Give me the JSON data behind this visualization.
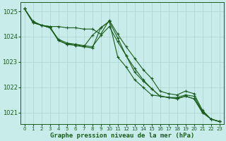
{
  "background_color": "#c8ecea",
  "grid_color": "#b0d8d0",
  "line_color": "#1a5c1a",
  "title": "Graphe pression niveau de la mer (hPa)",
  "xlim": [
    -0.5,
    23.5
  ],
  "ylim": [
    1020.55,
    1025.35
  ],
  "yticks": [
    1021,
    1022,
    1023,
    1024,
    1025
  ],
  "xtick_labels": [
    "0",
    "1",
    "2",
    "3",
    "4",
    "5",
    "6",
    "7",
    "8",
    "9",
    "10",
    "11",
    "12",
    "13",
    "14",
    "15",
    "16",
    "17",
    "18",
    "19",
    "20",
    "21",
    "22",
    "23"
  ],
  "xticks": [
    0,
    1,
    2,
    3,
    4,
    5,
    6,
    7,
    8,
    9,
    10,
    11,
    12,
    13,
    14,
    15,
    16,
    17,
    18,
    19,
    20,
    21,
    22,
    23
  ],
  "lines": [
    {
      "x": [
        0,
        1,
        2,
        3,
        4,
        5,
        6,
        7,
        8,
        9,
        10,
        11,
        12,
        13,
        14,
        15,
        16,
        17,
        18,
        19,
        20,
        21,
        22,
        23
      ],
      "y": [
        1025.1,
        1024.6,
        1024.45,
        1024.4,
        1024.4,
        1024.35,
        1024.35,
        1024.3,
        1024.3,
        1024.1,
        1024.65,
        1024.1,
        1023.6,
        1023.15,
        1022.7,
        1022.35,
        1021.85,
        1021.75,
        1021.7,
        1021.85,
        1021.75,
        1021.1,
        1020.75,
        1020.65
      ]
    },
    {
      "x": [
        0,
        1,
        2,
        3,
        4,
        5,
        6,
        7,
        8,
        9,
        10,
        11,
        12,
        13,
        14,
        15,
        16,
        17,
        18,
        19,
        20,
        21,
        22,
        23
      ],
      "y": [
        1025.1,
        1024.55,
        1024.45,
        1024.35,
        1023.9,
        1023.75,
        1023.7,
        1023.65,
        1023.6,
        1024.05,
        1024.4,
        1023.8,
        1023.25,
        1022.75,
        1022.3,
        1021.95,
        1021.65,
        1021.6,
        1021.6,
        1021.7,
        1021.65,
        1021.05,
        1020.75,
        1020.65
      ]
    },
    {
      "x": [
        0,
        1,
        2,
        3,
        4,
        5,
        6,
        7,
        8,
        9,
        10,
        11,
        12,
        13,
        14,
        15,
        16,
        17,
        18,
        19,
        20,
        21,
        22,
        23
      ],
      "y": [
        1025.1,
        1024.55,
        1024.45,
        1024.35,
        1023.85,
        1023.7,
        1023.65,
        1023.6,
        1023.55,
        1024.35,
        1024.6,
        1023.95,
        1023.25,
        1022.6,
        1022.25,
        1021.95,
        1021.65,
        1021.6,
        1021.55,
        1021.65,
        1021.55,
        1021.0,
        1020.75,
        1020.65
      ]
    },
    {
      "x": [
        0,
        1,
        2,
        3,
        4,
        5,
        6,
        7,
        8,
        9,
        10,
        11,
        12,
        13,
        14,
        15,
        16,
        17,
        18,
        19,
        20,
        21,
        22,
        23
      ],
      "y": [
        1025.1,
        1024.6,
        1024.45,
        1024.4,
        1023.85,
        1023.7,
        1023.7,
        1023.6,
        1024.05,
        1024.35,
        1024.6,
        1023.2,
        1022.8,
        1022.3,
        1022.0,
        1021.7,
        1021.65,
        1021.6,
        1021.55,
        1021.65,
        1021.55,
        1021.05,
        1020.75,
        1020.65
      ]
    }
  ]
}
